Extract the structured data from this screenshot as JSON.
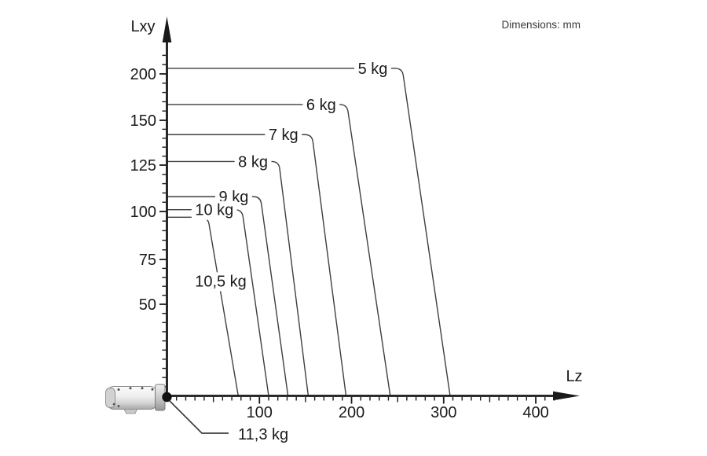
{
  "header": {
    "units_note": "Dimensions: mm"
  },
  "colors": {
    "axis": "#1a1a1a",
    "curve": "#3f3f3f",
    "text": "#1a1a1a",
    "note_text": "#3a3a3a",
    "background": "#ffffff"
  },
  "chart_data": {
    "type": "line",
    "xlabel": "Lz",
    "ylabel": "Lxy",
    "units_note": "Dimensions: mm",
    "x_ticks": [
      100,
      200,
      300,
      400
    ],
    "y_ticks": [
      50,
      75,
      100,
      125,
      150,
      200
    ],
    "xlim": [
      0,
      430
    ],
    "ylim": [
      0,
      215
    ],
    "grid": false,
    "legend_position": "inline-on-curves",
    "curves": [
      {
        "label": "5 kg",
        "lxy_max": 206,
        "corner_lz": 255,
        "lz_max": 307,
        "label_lz": 223,
        "label_style": "inline"
      },
      {
        "label": "6 kg",
        "lxy_max": 167,
        "corner_lz": 195,
        "lz_max": 242,
        "label_lz": 167,
        "label_style": "inline"
      },
      {
        "label": "7 kg",
        "lxy_max": 142,
        "corner_lz": 157,
        "lz_max": 194,
        "label_lz": 126,
        "label_style": "inline"
      },
      {
        "label": "8 kg",
        "lxy_max": 127,
        "corner_lz": 121,
        "lz_max": 153,
        "label_lz": 93,
        "label_style": "inline"
      },
      {
        "label": "9 kg",
        "lxy_max": 108,
        "corner_lz": 101,
        "lz_max": 131,
        "label_lz": 72,
        "label_style": "inline"
      },
      {
        "label": "10 kg",
        "lxy_max": 101,
        "corner_lz": 81,
        "lz_max": 110,
        "label_lz": 51,
        "label_style": "inline"
      },
      {
        "label": "10,5 kg",
        "lxy_max": 97,
        "corner_lz": 44,
        "lz_max": 77,
        "label_lz": 58,
        "label_lxy": 63,
        "label_style": "floating"
      }
    ],
    "max_payload": {
      "label": "11,3 kg",
      "lz": 0,
      "lxy": 0
    }
  }
}
